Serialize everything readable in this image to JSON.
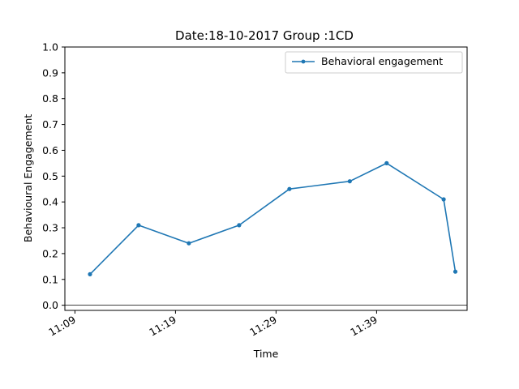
{
  "chart_data": {
    "type": "line",
    "title": "Date:18-10-2017 Group :1CD",
    "xlabel": "Time",
    "ylabel": "Behavioural Engagement",
    "xlim": [
      "11:08",
      "11:48"
    ],
    "ylim": [
      -0.02,
      1.0
    ],
    "yticks": [
      0.0,
      0.1,
      0.2,
      0.3,
      0.4,
      0.5,
      0.6,
      0.7,
      0.8,
      0.9,
      1.0
    ],
    "xticks": [
      "11:09",
      "11:19",
      "11:29",
      "11:39"
    ],
    "grid": false,
    "legend_position": "top-right",
    "reference_line_y": 0,
    "series": [
      {
        "name": "Behavioral engagement",
        "color": "#1f77b4",
        "marker": "circle",
        "x": [
          "11:10:30",
          "11:15:20",
          "11:20:20",
          "11:25:20",
          "11:30:20",
          "11:36:20",
          "11:40:00",
          "11:45:40",
          "11:46:50"
        ],
        "values": [
          0.12,
          0.31,
          0.24,
          0.31,
          0.45,
          0.48,
          0.55,
          0.41,
          0.13
        ]
      }
    ]
  }
}
